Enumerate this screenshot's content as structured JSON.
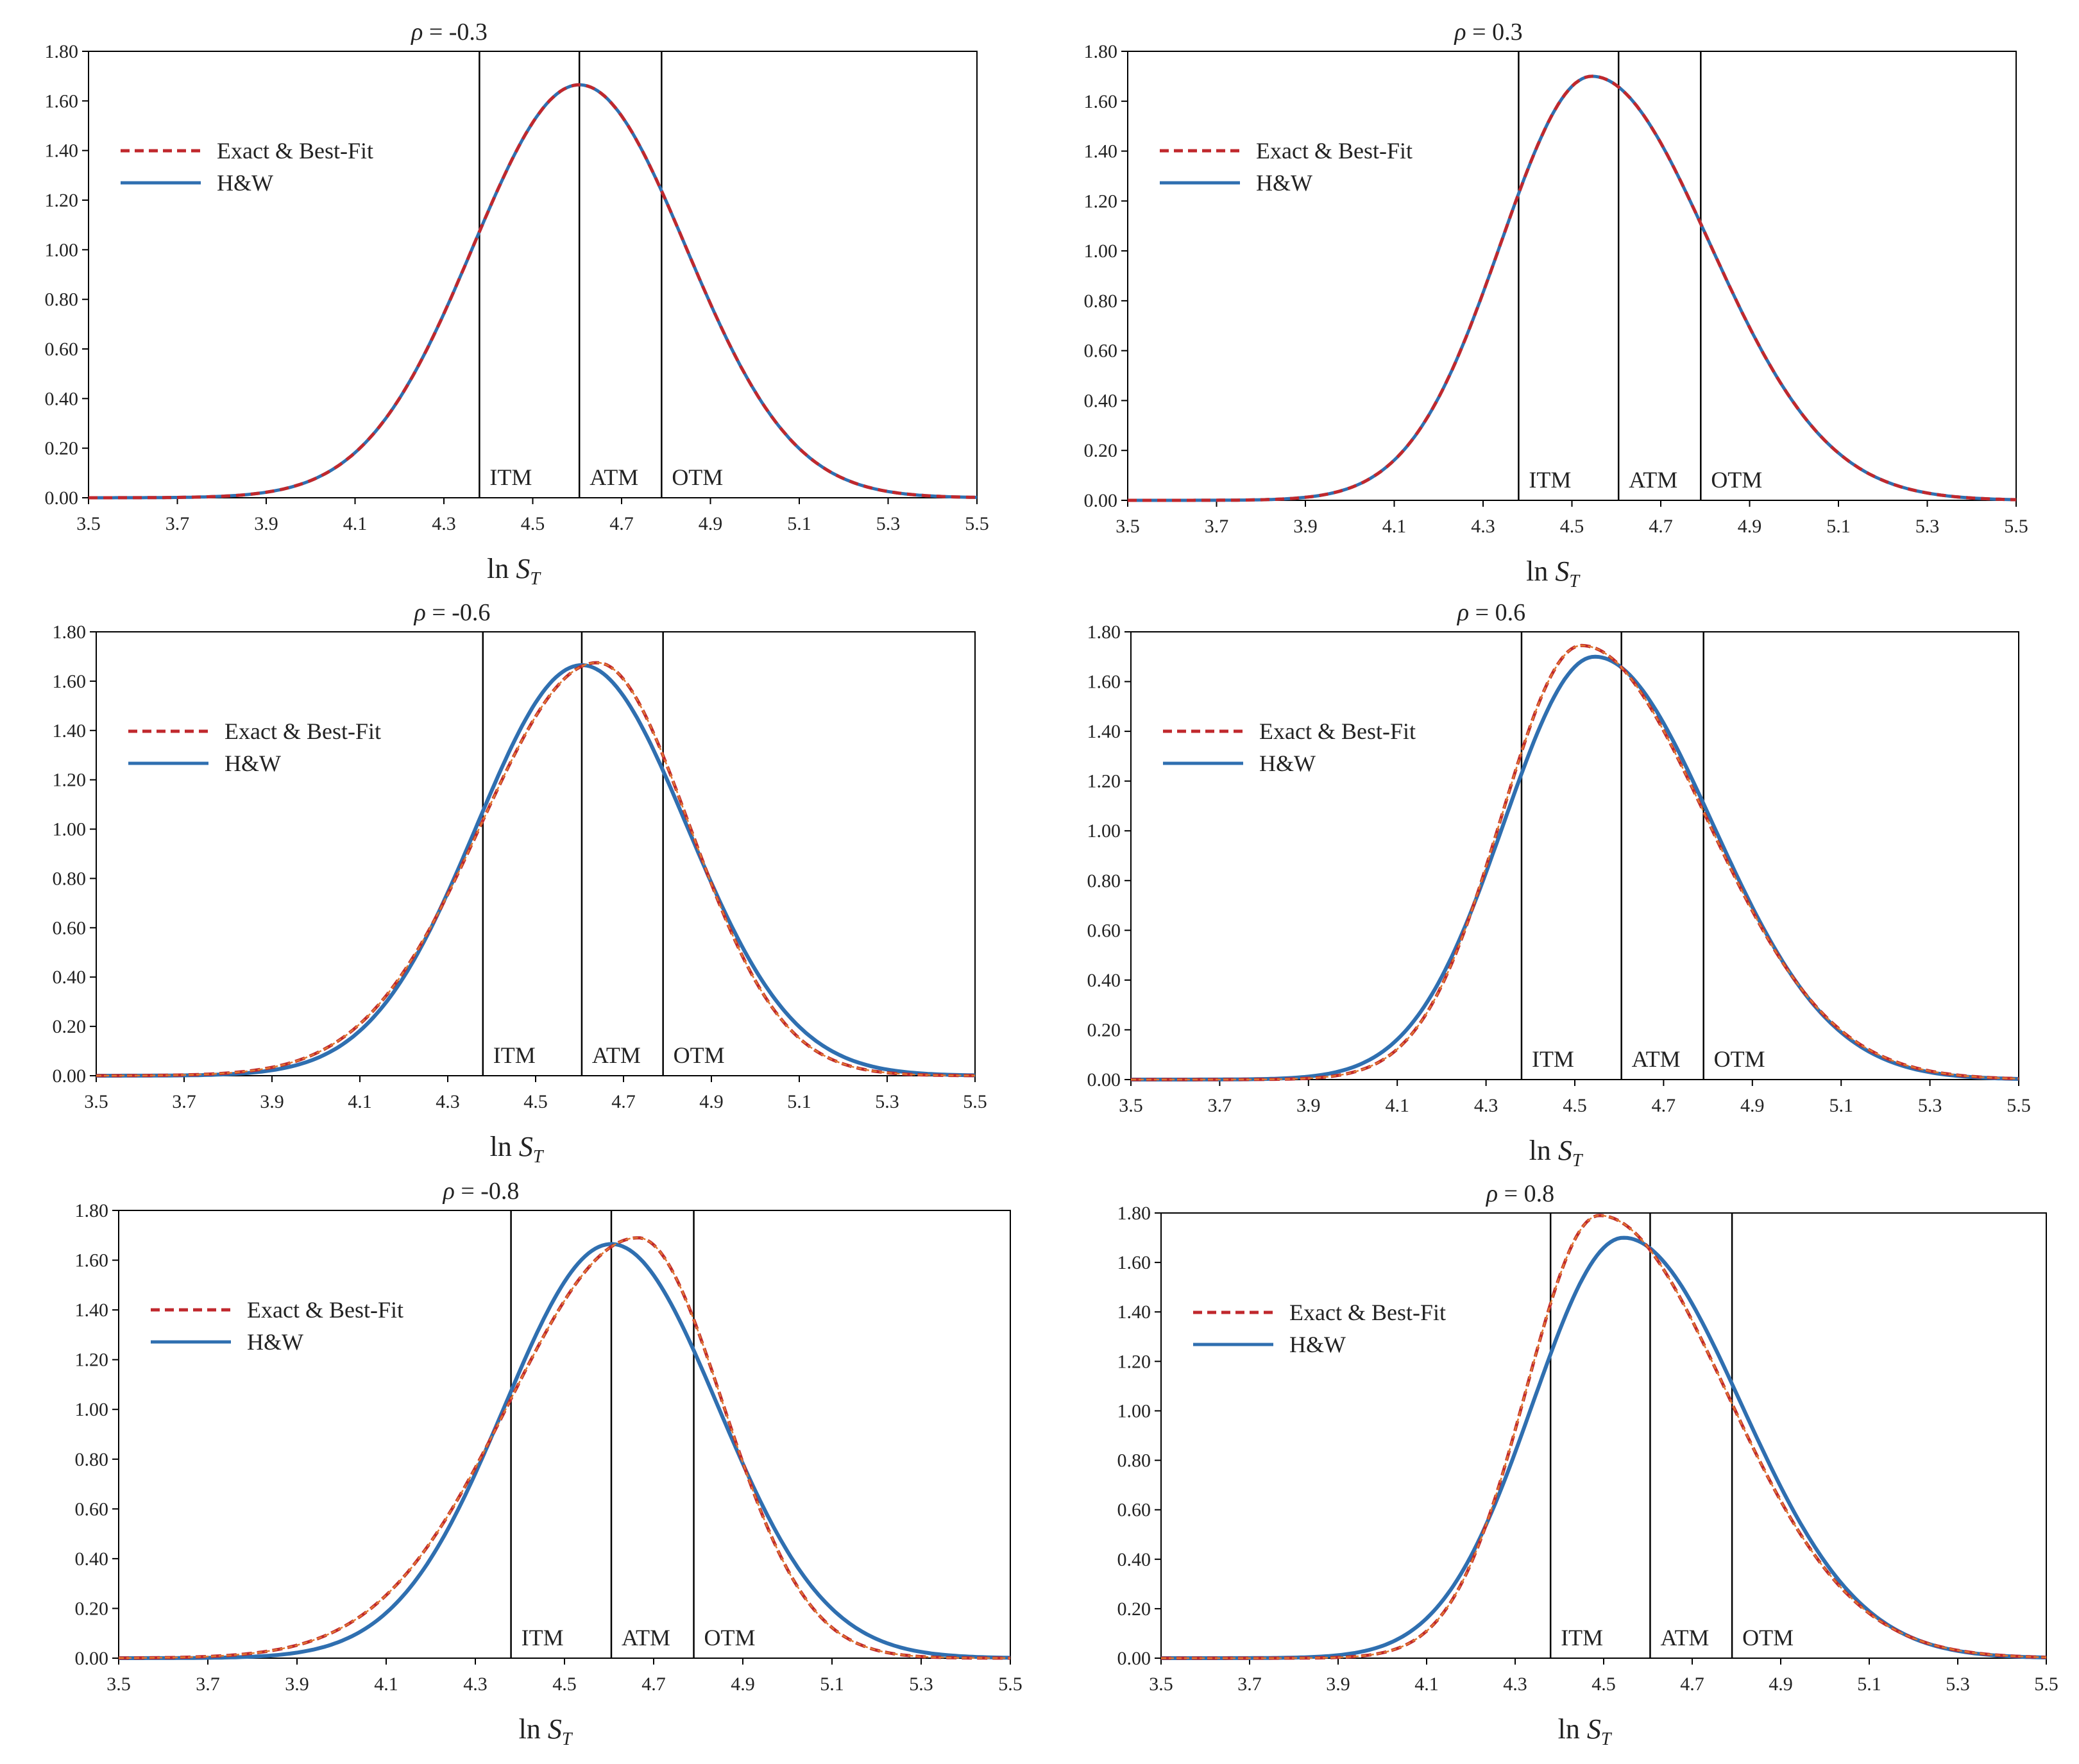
{
  "colors": {
    "exact": "#c0282d",
    "exact_fit": "#e07830",
    "hw": "#2f6fb0",
    "frame": "#000000",
    "grid": "#000000"
  },
  "chart_data": [
    {
      "type": "line",
      "title_symbol": "ρ",
      "title": " = -0.3",
      "rho": -0.3,
      "xlabel_prefix": "ln ",
      "xlabel_var": "S",
      "xlabel_sub": "T",
      "ylabel": "",
      "xlim": [
        3.5,
        5.5
      ],
      "ylim": [
        0,
        1.8
      ],
      "xticks": [
        "3.5",
        "3.7",
        "3.9",
        "4.1",
        "4.3",
        "4.5",
        "4.7",
        "4.9",
        "5.1",
        "5.3",
        "5.5"
      ],
      "yticks": [
        "0.00",
        "0.20",
        "0.40",
        "0.60",
        "0.80",
        "1.00",
        "1.20",
        "1.40",
        "1.60",
        "1.80"
      ],
      "vlines": [
        4.38,
        4.605,
        4.79
      ],
      "zone_labels": [
        "ITM",
        "ATM",
        "OTM"
      ],
      "legend": {
        "exact": "Exact & Best-Fit",
        "hw": "H&W",
        "placement": "upper-left"
      },
      "series": [
        {
          "name": "H&W",
          "style": "solid",
          "peak_x": 4.605,
          "peak_y": 1.665,
          "sigma_left": 0.24,
          "sigma_right": 0.24
        },
        {
          "name": "Exact & Best-Fit",
          "style": "dashed",
          "peak_x": 4.605,
          "peak_y": 1.665,
          "sigma_left": 0.24,
          "sigma_right": 0.24
        }
      ]
    },
    {
      "type": "line",
      "title_symbol": "ρ",
      "title": " = 0.3",
      "rho": 0.3,
      "xlabel_prefix": "ln ",
      "xlabel_var": "S",
      "xlabel_sub": "T",
      "ylabel": "",
      "xlim": [
        3.5,
        5.5
      ],
      "ylim": [
        0,
        1.8
      ],
      "xticks": [
        "3.5",
        "3.7",
        "3.9",
        "4.1",
        "4.3",
        "4.5",
        "4.7",
        "4.9",
        "5.1",
        "5.3",
        "5.5"
      ],
      "yticks": [
        "0.00",
        "0.20",
        "0.40",
        "0.60",
        "0.80",
        "1.00",
        "1.20",
        "1.40",
        "1.60",
        "1.80"
      ],
      "vlines": [
        4.38,
        4.605,
        4.79
      ],
      "zone_labels": [
        "ITM",
        "ATM",
        "OTM"
      ],
      "legend": {
        "exact": "Exact & Best-Fit",
        "hw": "H&W",
        "placement": "upper-left"
      },
      "series": [
        {
          "name": "H&W",
          "style": "solid",
          "peak_x": 4.545,
          "peak_y": 1.7,
          "sigma_left": 0.205,
          "sigma_right": 0.265
        },
        {
          "name": "Exact & Best-Fit",
          "style": "dashed",
          "peak_x": 4.545,
          "peak_y": 1.7,
          "sigma_left": 0.205,
          "sigma_right": 0.265
        }
      ]
    },
    {
      "type": "line",
      "title_symbol": "ρ",
      "title": " = -0.6",
      "rho": -0.6,
      "xlabel_prefix": "ln ",
      "xlabel_var": "S",
      "xlabel_sub": "T",
      "ylabel": "",
      "xlim": [
        3.5,
        5.5
      ],
      "ylim": [
        0,
        1.8
      ],
      "xticks": [
        "3.5",
        "3.7",
        "3.9",
        "4.1",
        "4.3",
        "4.5",
        "4.7",
        "4.9",
        "5.1",
        "5.3",
        "5.5"
      ],
      "yticks": [
        "0.00",
        "0.20",
        "0.40",
        "0.60",
        "0.80",
        "1.00",
        "1.20",
        "1.40",
        "1.60",
        "1.80"
      ],
      "vlines": [
        4.38,
        4.605,
        4.79
      ],
      "zone_labels": [
        "ITM",
        "ATM",
        "OTM"
      ],
      "legend": {
        "exact": "Exact & Best-Fit",
        "hw": "H&W",
        "placement": "upper-left"
      },
      "series": [
        {
          "name": "H&W",
          "style": "solid",
          "peak_x": 4.605,
          "peak_y": 1.665,
          "sigma_left": 0.24,
          "sigma_right": 0.24
        },
        {
          "name": "Exact & Best-Fit",
          "style": "dashed",
          "peak_x": 4.64,
          "peak_y": 1.675,
          "sigma_left": 0.265,
          "sigma_right": 0.21
        }
      ]
    },
    {
      "type": "line",
      "title_symbol": "ρ",
      "title": " = 0.6",
      "rho": 0.6,
      "xlabel_prefix": "ln ",
      "xlabel_var": "S",
      "xlabel_sub": "T",
      "ylabel": "",
      "xlim": [
        3.5,
        5.5
      ],
      "ylim": [
        0,
        1.8
      ],
      "xticks": [
        "3.5",
        "3.7",
        "3.9",
        "4.1",
        "4.3",
        "4.5",
        "4.7",
        "4.9",
        "5.1",
        "5.3",
        "5.5"
      ],
      "yticks": [
        "0.00",
        "0.20",
        "0.40",
        "0.60",
        "0.80",
        "1.00",
        "1.20",
        "1.40",
        "1.60",
        "1.80"
      ],
      "vlines": [
        4.38,
        4.605,
        4.79
      ],
      "zone_labels": [
        "ITM",
        "ATM",
        "OTM"
      ],
      "legend": {
        "exact": "Exact & Best-Fit",
        "hw": "H&W",
        "placement": "upper-left"
      },
      "series": [
        {
          "name": "H&W",
          "style": "solid",
          "peak_x": 4.545,
          "peak_y": 1.7,
          "sigma_left": 0.205,
          "sigma_right": 0.265
        },
        {
          "name": "Exact & Best-Fit",
          "style": "dashed",
          "peak_x": 4.515,
          "peak_y": 1.745,
          "sigma_left": 0.18,
          "sigma_right": 0.28
        }
      ]
    },
    {
      "type": "line",
      "title_symbol": "ρ",
      "title": " = -0.8",
      "rho": -0.8,
      "xlabel_prefix": "ln ",
      "xlabel_var": "S",
      "xlabel_sub": "T",
      "ylabel": "",
      "xlim": [
        3.5,
        5.5
      ],
      "ylim": [
        0,
        1.8
      ],
      "xticks": [
        "3.5",
        "3.7",
        "3.9",
        "4.1",
        "4.3",
        "4.5",
        "4.7",
        "4.9",
        "5.1",
        "5.3",
        "5.5"
      ],
      "yticks": [
        "0.00",
        "0.20",
        "0.40",
        "0.60",
        "0.80",
        "1.00",
        "1.20",
        "1.40",
        "1.60",
        "1.80"
      ],
      "vlines": [
        4.38,
        4.605,
        4.79
      ],
      "zone_labels": [
        "ITM",
        "ATM",
        "OTM"
      ],
      "legend": {
        "exact": "Exact & Best-Fit",
        "hw": "H&W",
        "placement": "upper-left"
      },
      "series": [
        {
          "name": "H&W",
          "style": "solid",
          "peak_x": 4.605,
          "peak_y": 1.665,
          "sigma_left": 0.24,
          "sigma_right": 0.24
        },
        {
          "name": "Exact & Best-Fit",
          "style": "dashed",
          "peak_x": 4.665,
          "peak_y": 1.69,
          "sigma_left": 0.29,
          "sigma_right": 0.19
        }
      ]
    },
    {
      "type": "line",
      "title_symbol": "ρ",
      "title": " = 0.8",
      "rho": 0.8,
      "xlabel_prefix": "ln ",
      "xlabel_var": "S",
      "xlabel_sub": "T",
      "ylabel": "",
      "xlim": [
        3.5,
        5.5
      ],
      "ylim": [
        0,
        1.8
      ],
      "xticks": [
        "3.5",
        "3.7",
        "3.9",
        "4.1",
        "4.3",
        "4.5",
        "4.7",
        "4.9",
        "5.1",
        "5.3",
        "5.5"
      ],
      "yticks": [
        "0.00",
        "0.20",
        "0.40",
        "0.60",
        "0.80",
        "1.00",
        "1.20",
        "1.40",
        "1.60",
        "1.80"
      ],
      "vlines": [
        4.38,
        4.605,
        4.79
      ],
      "zone_labels": [
        "ITM",
        "ATM",
        "OTM"
      ],
      "legend": {
        "exact": "Exact & Best-Fit",
        "hw": "H&W",
        "placement": "upper-left"
      },
      "series": [
        {
          "name": "H&W",
          "style": "solid",
          "peak_x": 4.545,
          "peak_y": 1.7,
          "sigma_left": 0.205,
          "sigma_right": 0.265
        },
        {
          "name": "Exact & Best-Fit",
          "style": "dashed",
          "peak_x": 4.49,
          "peak_y": 1.79,
          "sigma_left": 0.165,
          "sigma_right": 0.285
        }
      ]
    }
  ]
}
